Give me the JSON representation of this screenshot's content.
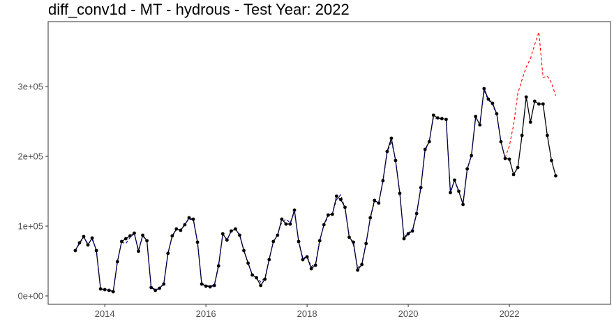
{
  "chart_data": {
    "type": "line",
    "title": "diff_conv1d - MT - hydrous - Test Year: 2022",
    "xlabel": "",
    "ylabel": "",
    "x_ticks": [
      {
        "value": 2014,
        "label": "2014"
      },
      {
        "value": 2016,
        "label": "2016"
      },
      {
        "value": 2018,
        "label": "2018"
      },
      {
        "value": 2020,
        "label": "2020"
      },
      {
        "value": 2022,
        "label": "2022"
      }
    ],
    "y_ticks": [
      {
        "value": 0,
        "label": "0e+00"
      },
      {
        "value": 100000,
        "label": "1e+05"
      },
      {
        "value": 200000,
        "label": "2e+05"
      },
      {
        "value": 300000,
        "label": "3e+05"
      }
    ],
    "xlim": [
      2012.88,
      2024.0
    ],
    "ylim": [
      -12000,
      393000
    ],
    "grid": false,
    "start_year": 2013,
    "start_month": 6,
    "series": [
      {
        "name": "",
        "style": "solid-points",
        "color": "#000000",
        "values": [
          65000,
          76000,
          85000,
          73000,
          83000,
          65000,
          10000,
          9000,
          8000,
          6000,
          49000,
          78000,
          82000,
          86000,
          90000,
          64000,
          87000,
          79000,
          12000,
          8000,
          11000,
          17000,
          61000,
          86000,
          96000,
          94000,
          102000,
          112000,
          110000,
          77000,
          17000,
          14000,
          13000,
          15000,
          43000,
          89000,
          80000,
          93000,
          96000,
          87000,
          65000,
          47000,
          30000,
          26000,
          15000,
          24000,
          52000,
          78000,
          87000,
          110000,
          103000,
          103000,
          123000,
          78000,
          52000,
          56000,
          39000,
          44000,
          79000,
          102000,
          116000,
          117000,
          143000,
          138000,
          127000,
          84000,
          77000,
          37000,
          45000,
          75000,
          112000,
          137000,
          133000,
          165000,
          207000,
          226000,
          194000,
          147000,
          82000,
          89000,
          93000,
          118000,
          155000,
          210000,
          221000,
          259000,
          255000,
          254000,
          253000,
          148000,
          166000,
          150000,
          131000,
          182000,
          201000,
          257000,
          245000,
          297000,
          282000,
          276000,
          261000,
          221000,
          197000,
          196000,
          174000,
          184000,
          230000,
          285000,
          249000,
          279000,
          275000,
          275000,
          230000,
          194000,
          172000
        ]
      },
      {
        "name": "",
        "style": "dashed",
        "color": "#00008b",
        "values": [
          65000,
          75000,
          84000,
          75000,
          81000,
          66000,
          11000,
          9000,
          8000,
          7000,
          50000,
          77000,
          75000,
          84000,
          89000,
          66000,
          86000,
          78000,
          13000,
          9000,
          11000,
          18000,
          62000,
          85000,
          95000,
          95000,
          103000,
          110000,
          109000,
          78000,
          18000,
          15000,
          14000,
          16000,
          45000,
          88000,
          81000,
          92000,
          95000,
          88000,
          66000,
          48000,
          31000,
          27000,
          20000,
          26000,
          53000,
          77000,
          88000,
          106000,
          110000,
          105000,
          120000,
          79000,
          54000,
          57000,
          42000,
          46000,
          80000,
          101000,
          114000,
          118000,
          138000,
          145000,
          125000,
          86000,
          73000,
          40000,
          47000,
          76000,
          111000,
          135000,
          134000,
          164000,
          205000,
          222000,
          195000,
          148000,
          84000,
          90000,
          95000,
          119000,
          156000,
          208000,
          222000,
          256000,
          254000,
          253000,
          252000,
          150000,
          165000,
          149000,
          133000,
          181000,
          202000,
          255000,
          247000,
          294000,
          281000,
          274000,
          260000,
          220000,
          198000
        ]
      },
      {
        "name": "",
        "style": "dashed",
        "color": "#ff0000",
        "start_index": 102,
        "values": [
          198000,
          215000,
          245000,
          290000,
          310000,
          328000,
          340000,
          360000,
          378000,
          313000,
          315000,
          305000,
          287000
        ]
      }
    ]
  }
}
